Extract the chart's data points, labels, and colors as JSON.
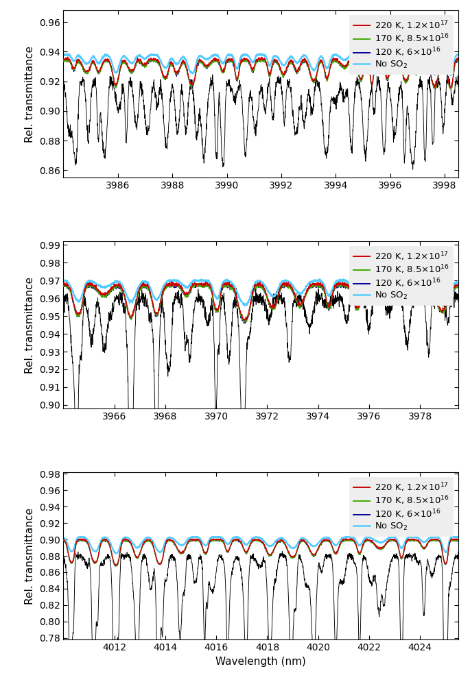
{
  "panels": [
    {
      "xmin": 3984.0,
      "xmax": 3998.5,
      "ymin": 0.855,
      "ymax": 0.968,
      "yticks": [
        0.86,
        0.88,
        0.9,
        0.92,
        0.94,
        0.96
      ],
      "xticks": [
        3986,
        3988,
        3990,
        3992,
        3994,
        3996,
        3998
      ],
      "obs_base": 0.92,
      "mod_base": 0.935,
      "noso2_base": 0.938
    },
    {
      "xmin": 3964.0,
      "xmax": 3979.5,
      "ymin": 0.898,
      "ymax": 0.992,
      "yticks": [
        0.9,
        0.91,
        0.92,
        0.93,
        0.94,
        0.95,
        0.96,
        0.97,
        0.98,
        0.99
      ],
      "xticks": [
        3966,
        3968,
        3970,
        3972,
        3974,
        3976,
        3978
      ],
      "obs_base": 0.96,
      "mod_base": 0.968,
      "noso2_base": 0.97
    },
    {
      "xmin": 4010.0,
      "xmax": 4025.5,
      "ymin": 0.778,
      "ymax": 0.982,
      "yticks": [
        0.78,
        0.8,
        0.82,
        0.84,
        0.86,
        0.88,
        0.9,
        0.92,
        0.94,
        0.96,
        0.98
      ],
      "xticks": [
        4012,
        4014,
        4016,
        4018,
        4020,
        4022,
        4024
      ],
      "obs_base": 0.88,
      "mod_base": 0.9,
      "noso2_base": 0.903
    }
  ],
  "line_colors": [
    "#cc0000",
    "#44aa00",
    "#000099",
    "#55ccff",
    "#000000"
  ],
  "line_widths_model": [
    0.8,
    0.8,
    0.8,
    1.8,
    0.7
  ],
  "ylabel": "Rel. transmittance",
  "xlabel": "Wavelength (nm)",
  "background_color": "#ffffff",
  "legend_fontsize": 9.5,
  "axis_fontsize": 11,
  "tick_fontsize": 10
}
